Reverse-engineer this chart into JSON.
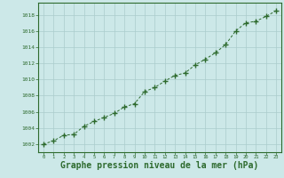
{
  "x": [
    0,
    1,
    2,
    3,
    4,
    5,
    6,
    7,
    8,
    9,
    10,
    11,
    12,
    13,
    14,
    15,
    16,
    17,
    18,
    19,
    20,
    21,
    22,
    23
  ],
  "y": [
    1002.0,
    1002.4,
    1003.1,
    1003.2,
    1004.2,
    1004.8,
    1005.3,
    1005.8,
    1006.6,
    1007.0,
    1008.5,
    1009.0,
    1009.8,
    1010.5,
    1010.8,
    1011.8,
    1012.5,
    1013.3,
    1014.3,
    1016.0,
    1017.0,
    1017.2,
    1017.8,
    1018.5
  ],
  "line_color": "#2d6a2d",
  "marker_color": "#2d6a2d",
  "bg_color": "#cce8e8",
  "grid_color": "#aacccc",
  "xlabel": "Graphe pression niveau de la mer (hPa)",
  "xlabel_fontsize": 7,
  "ylabel_ticks": [
    1002,
    1004,
    1006,
    1008,
    1010,
    1012,
    1014,
    1016,
    1018
  ],
  "xlim": [
    -0.5,
    23.5
  ],
  "ylim": [
    1001.0,
    1019.5
  ],
  "tick_color": "#2d6a2d",
  "axis_color": "#2d6a2d",
  "spine_color": "#2d6a2d"
}
